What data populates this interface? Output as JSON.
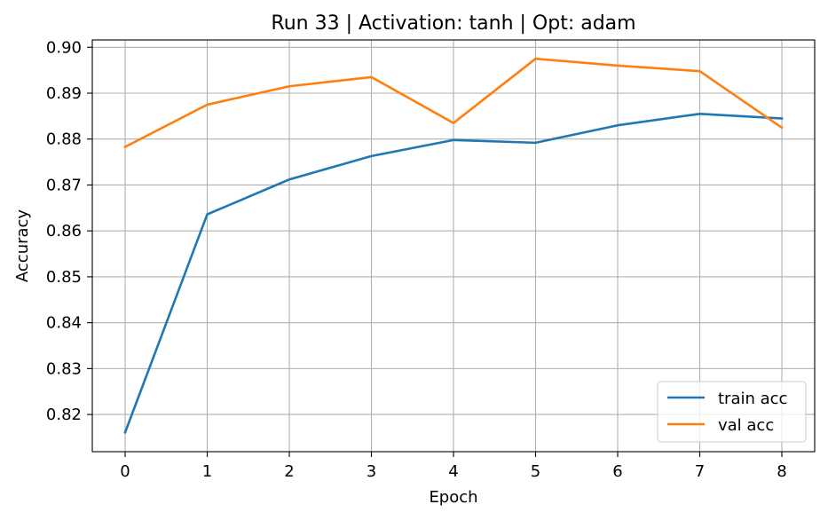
{
  "chart_data": {
    "type": "line",
    "title": "Run 33 | Activation: tanh | Opt: adam",
    "xlabel": "Epoch",
    "ylabel": "Accuracy",
    "x": [
      0,
      1,
      2,
      3,
      4,
      5,
      6,
      7,
      8
    ],
    "xticks": [
      "0",
      "1",
      "2",
      "3",
      "4",
      "5",
      "6",
      "7",
      "8"
    ],
    "yticks": [
      "0.82",
      "0.83",
      "0.84",
      "0.85",
      "0.86",
      "0.87",
      "0.88",
      "0.89",
      "0.90"
    ],
    "ytick_values": [
      0.82,
      0.83,
      0.84,
      0.85,
      0.86,
      0.87,
      0.88,
      0.89,
      0.9
    ],
    "xlim": [
      -0.4,
      8.4
    ],
    "ylim": [
      0.8119,
      0.9016
    ],
    "grid": true,
    "legend_position": "lower-right",
    "series": [
      {
        "name": "train acc",
        "color": "#1f77b4",
        "values": [
          0.8161,
          0.8636,
          0.8712,
          0.8763,
          0.8798,
          0.8792,
          0.883,
          0.8855,
          0.8845
        ]
      },
      {
        "name": "val acc",
        "color": "#ff7f0e",
        "values": [
          0.8783,
          0.8875,
          0.8915,
          0.8935,
          0.8835,
          0.8975,
          0.896,
          0.8948,
          0.8825
        ]
      }
    ]
  }
}
